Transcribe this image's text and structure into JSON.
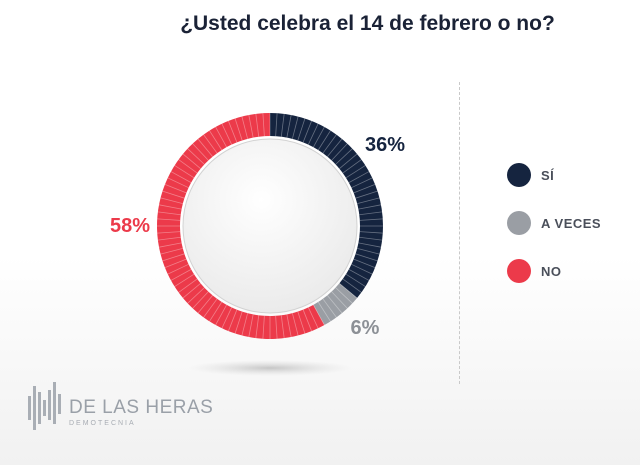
{
  "title": "¿Usted celebra el 14 de febrero o no?",
  "chart_data": {
    "type": "donut",
    "title": "¿Usted celebra el 14 de febrero o no?",
    "series": [
      {
        "name": "SÍ",
        "value": 36,
        "label": "36%",
        "color": "#15243f"
      },
      {
        "name": "A VECES",
        "value": 6,
        "label": "6%",
        "color": "#9a9ea4"
      },
      {
        "name": "NO",
        "value": 58,
        "label": "58%",
        "color": "#ec3a4a"
      }
    ],
    "legend_position": "right"
  },
  "legend": [
    {
      "label": "SÍ",
      "color": "#15243f"
    },
    {
      "label": "A VECES",
      "color": "#9a9ea4"
    },
    {
      "label": "NO",
      "color": "#ec3a4a"
    }
  ],
  "logo": {
    "name": "DE LAS HERAS",
    "subtitle": "DEMOTECNIA",
    "color": "#9aa0a8"
  }
}
